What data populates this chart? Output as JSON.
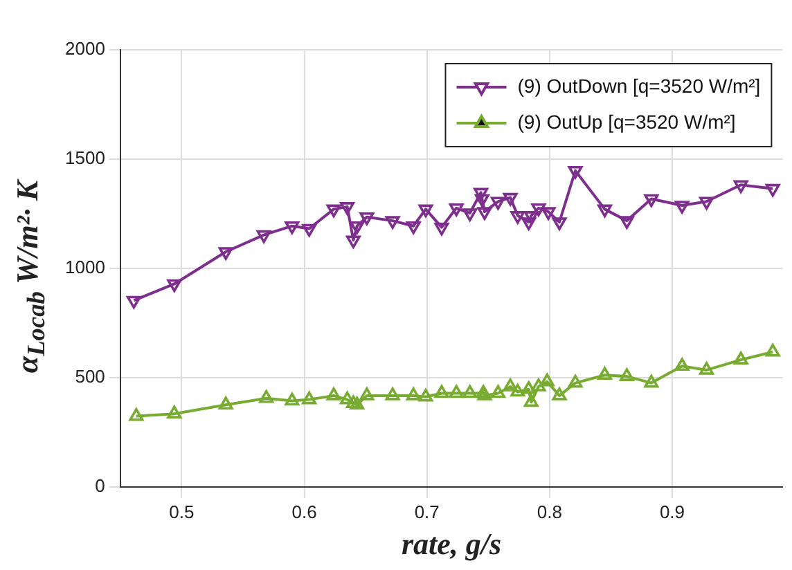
{
  "chart_data": {
    "type": "line",
    "xlabel": "rate, g/s",
    "ylabel": "α$_{Locab}$ W/m²· K",
    "xlim": [
      0.45,
      0.99
    ],
    "xticks": [
      0.5,
      0.6,
      0.7,
      0.8,
      0.9
    ],
    "ylim": [
      0,
      2000
    ],
    "yticks": [
      0,
      500,
      1000,
      1500,
      2000
    ],
    "grid": true,
    "legend": "top right",
    "marker": "triangle",
    "series": [
      {
        "name": "(9) OutDown [q=3520 W/m²]",
        "color": "#7e2f8e",
        "x": [
          0.461,
          0.494,
          0.536,
          0.567,
          0.59,
          0.604,
          0.624,
          0.635,
          0.64,
          0.643,
          0.651,
          0.672,
          0.689,
          0.699,
          0.712,
          0.724,
          0.735,
          0.744,
          0.745,
          0.747,
          0.758,
          0.768,
          0.774,
          0.783,
          0.785,
          0.791,
          0.799,
          0.808,
          0.821,
          0.845,
          0.863,
          0.883,
          0.908,
          0.928,
          0.956,
          0.982
        ],
        "values": [
          853,
          929,
          1076,
          1153,
          1194,
          1182,
          1271,
          1282,
          1129,
          1194,
          1235,
          1218,
          1194,
          1271,
          1188,
          1276,
          1253,
          1347,
          1318,
          1259,
          1306,
          1324,
          1241,
          1212,
          1241,
          1276,
          1259,
          1212,
          1447,
          1271,
          1218,
          1318,
          1288,
          1306,
          1382,
          1365
        ]
      },
      {
        "name": "(9) OutUp [q=3520 W/m²]",
        "color": "#77ac30",
        "x": [
          0.463,
          0.494,
          0.536,
          0.569,
          0.59,
          0.604,
          0.624,
          0.635,
          0.64,
          0.643,
          0.651,
          0.672,
          0.689,
          0.699,
          0.712,
          0.724,
          0.735,
          0.746,
          0.747,
          0.758,
          0.768,
          0.774,
          0.783,
          0.785,
          0.791,
          0.798,
          0.808,
          0.821,
          0.845,
          0.863,
          0.883,
          0.908,
          0.928,
          0.956,
          0.982
        ],
        "values": [
          324,
          335,
          376,
          406,
          394,
          400,
          418,
          400,
          382,
          376,
          418,
          418,
          418,
          412,
          429,
          429,
          429,
          429,
          418,
          429,
          459,
          435,
          447,
          388,
          459,
          482,
          418,
          476,
          512,
          506,
          476,
          553,
          535,
          582,
          618
        ]
      }
    ]
  }
}
